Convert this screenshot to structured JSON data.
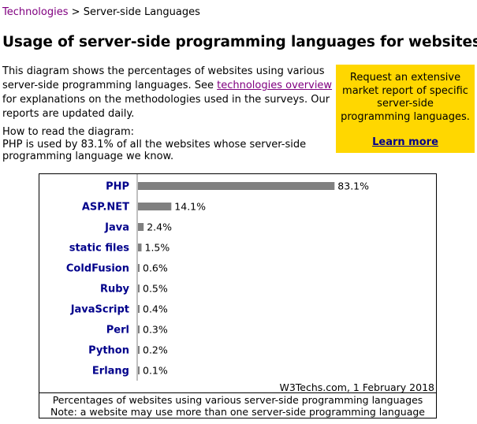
{
  "breadcrumb": {
    "link": "Technologies",
    "separator": " > ",
    "current": "Server-side Languages"
  },
  "page_title": "Usage of server-side programming languages for websites",
  "intro": {
    "before": "This diagram shows the percentages of websites using various server-side programming languages. See ",
    "link": "technologies overview",
    "after": " for explanations on the methodologies used in the surveys. Our reports are updated daily."
  },
  "howto": {
    "heading": "How to read the diagram:",
    "text": "PHP is used by 83.1% of all the websites whose server-side programming language we know."
  },
  "promo": {
    "text": "Request an extensive market report of specific server-side programming languages.",
    "link": "Learn more",
    "bg_color": "#ffd700"
  },
  "chart_data": {
    "type": "bar",
    "orientation": "horizontal",
    "categories": [
      "PHP",
      "ASP.NET",
      "Java",
      "static files",
      "ColdFusion",
      "Ruby",
      "JavaScript",
      "Perl",
      "Python",
      "Erlang"
    ],
    "values": [
      83.1,
      14.1,
      2.4,
      1.5,
      0.6,
      0.5,
      0.4,
      0.3,
      0.2,
      0.1
    ],
    "value_labels": [
      "83.1%",
      "14.1%",
      "2.4%",
      "1.5%",
      "0.6%",
      "0.5%",
      "0.4%",
      "0.3%",
      "0.2%",
      "0.1%"
    ],
    "xlim": [
      0,
      100
    ],
    "bar_color": "#808080",
    "label_color": "#00008b",
    "credit": "W3Techs.com, 1 February 2018",
    "caption_line1": "Percentages of websites using various server-side programming languages",
    "caption_line2": "Note: a website may use more than one server-side programming language"
  }
}
